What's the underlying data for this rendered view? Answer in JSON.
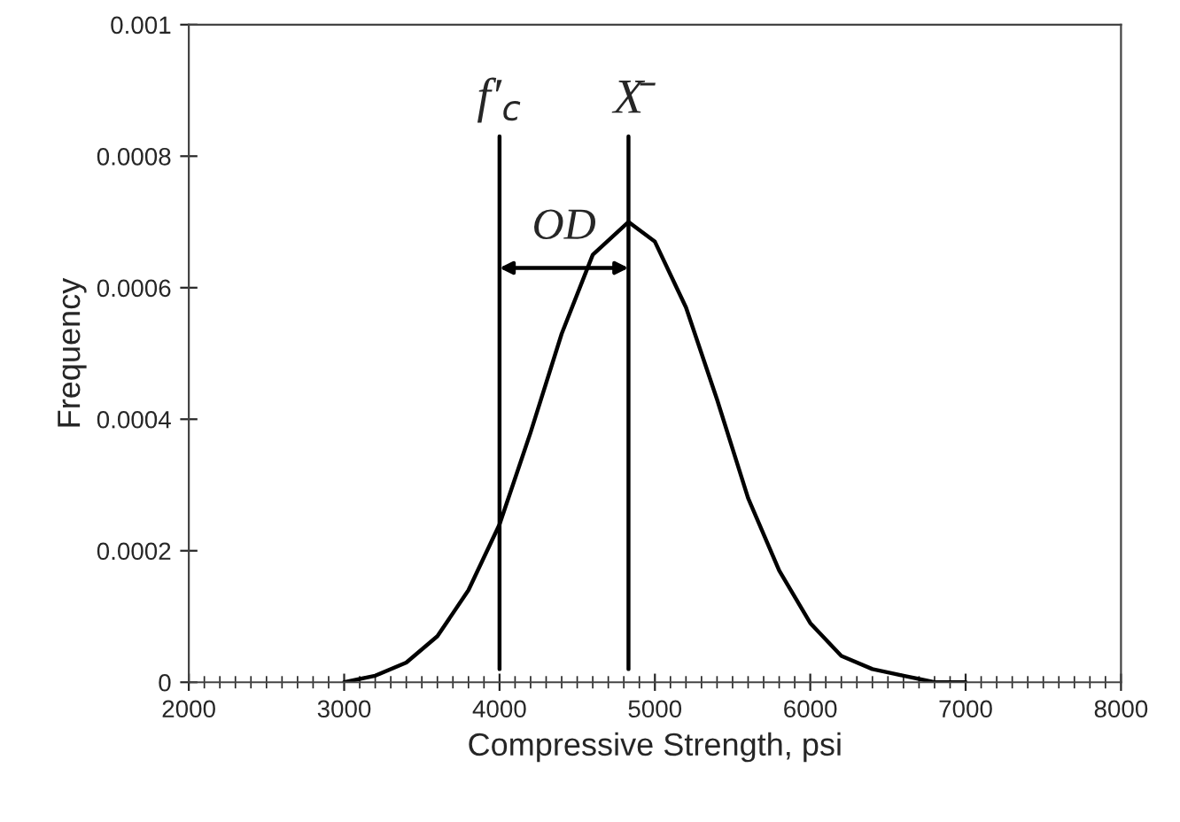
{
  "chart_data": {
    "type": "line",
    "xlabel": "Compressive Strength, psi",
    "ylabel": "Frequency",
    "x": [
      3000,
      3200,
      3400,
      3600,
      3800,
      4000,
      4200,
      4400,
      4600,
      4830,
      5000,
      5200,
      5400,
      5600,
      5800,
      6000,
      6200,
      6400,
      6600,
      6800,
      7000
    ],
    "series": [
      {
        "color": "#000000",
        "values": [
          0.0,
          1e-05,
          3e-05,
          7e-05,
          0.00014,
          0.00024,
          0.00038,
          0.00053,
          0.00065,
          0.0007,
          0.00067,
          0.00057,
          0.00043,
          0.00028,
          0.00017,
          9e-05,
          4e-05,
          2e-05,
          1e-05,
          0.0,
          0.0
        ]
      }
    ],
    "xlim": [
      2000,
      8000
    ],
    "xticks": [
      2000,
      3000,
      4000,
      5000,
      6000,
      7000,
      8000
    ],
    "ylim": [
      0,
      0.001
    ],
    "yticks": [
      0,
      0.0002,
      0.0004,
      0.0006,
      0.0008,
      0.001
    ],
    "ref_lines": [
      {
        "axis": "x",
        "value": 4000,
        "label": "f′$_{c}$",
        "color": "#000000"
      },
      {
        "axis": "x",
        "value": 4830,
        "label": "X̄",
        "color": "#000000"
      }
    ],
    "annotations": [
      "OD"
    ],
    "grid": false,
    "legend": false,
    "marker": "none",
    "line_style": "solid"
  }
}
